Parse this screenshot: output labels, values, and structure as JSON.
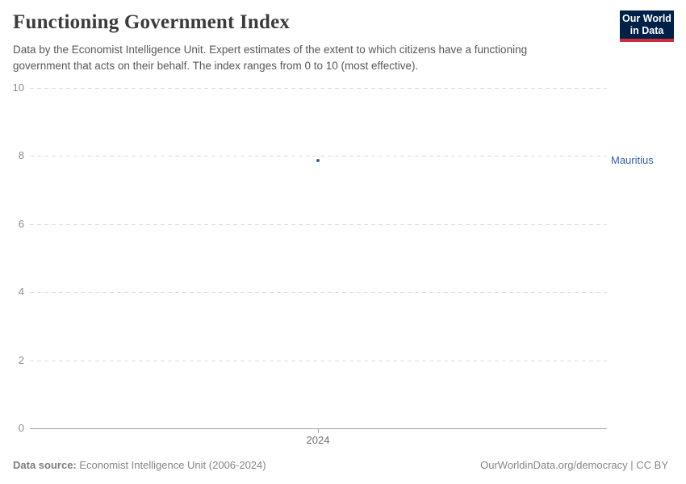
{
  "header": {
    "title": "Functioning Government Index",
    "subtitle": "Data by the Economist Intelligence Unit. Expert estimates of the extent to which citizens have a functioning government that acts on their behalf. The index ranges from 0 to 10 (most effective).",
    "logo": {
      "line1": "Our World",
      "line2": "in Data",
      "background": "#002147",
      "bar_color": "#cf2e41"
    }
  },
  "chart_data": {
    "type": "scatter",
    "title": "Functioning Government Index",
    "xlabel": "",
    "ylabel": "",
    "ylim": [
      0,
      10
    ],
    "y_ticks": [
      0,
      2,
      4,
      6,
      8,
      10
    ],
    "x": [
      2024
    ],
    "x_tick_labels": [
      "2024"
    ],
    "grid": "horizontal-dashed",
    "legend_position": "entity label right of plot",
    "series": [
      {
        "name": "Mauritius",
        "color": "#3360a9",
        "points": [
          {
            "year": 2024,
            "value": 7.86
          }
        ]
      }
    ]
  },
  "footer": {
    "source_label": "Data source:",
    "source_text": " Economist Intelligence Unit (2006-2024)",
    "credit": "OurWorldinData.org/democracy | CC BY"
  },
  "colors": {
    "accent_blue": "#3360a9",
    "gridline": "#dcdcdc",
    "axis": "#a0a0a0",
    "tick_label": "#8b8b8b",
    "footer_text": "#858585",
    "title_text": "#3b3b3b",
    "subtitle_text": "#575757"
  }
}
